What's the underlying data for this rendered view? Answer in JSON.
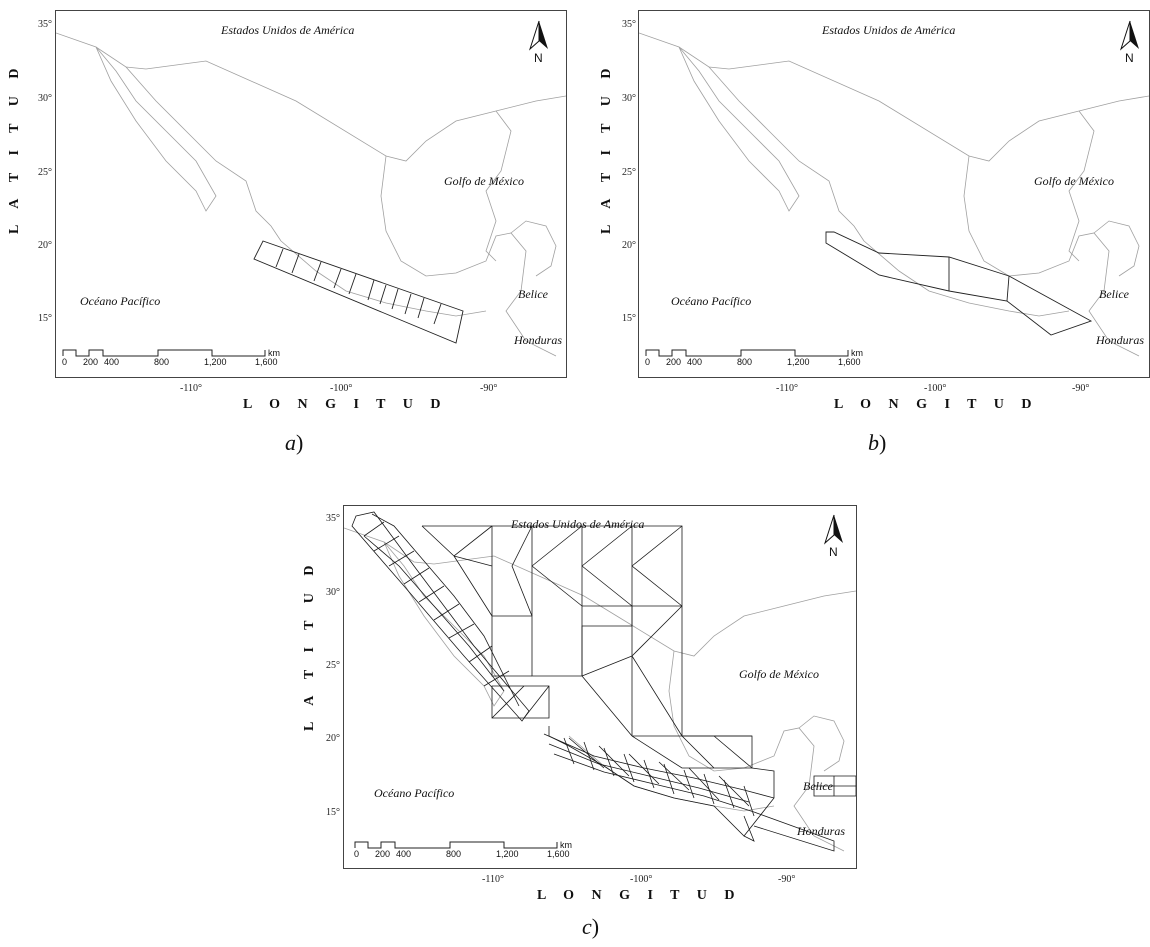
{
  "maps": [
    {
      "id": "a",
      "caption_letter": "a",
      "caption_paren": ")",
      "ylabel": "L A T I T U D",
      "xlabel": "L O N G I T U D",
      "yticks": [
        "35°",
        "30°",
        "25°",
        "20°",
        "15°"
      ],
      "xticks": [
        "-110°",
        "-100°",
        "-90°"
      ],
      "places": {
        "usa": "Estados Unidos de América",
        "gulf": "Golfo de México",
        "pacific": "Océano Pacífico",
        "belize": "Belice",
        "honduras": "Honduras"
      },
      "scale": {
        "labels": [
          "0",
          "200",
          "400",
          "800",
          "1,200",
          "1,600"
        ],
        "unit": "km"
      },
      "north": "N"
    },
    {
      "id": "b",
      "caption_letter": "b",
      "caption_paren": ")",
      "ylabel": "L A T I T U D",
      "xlabel": "L O N G I T U D",
      "yticks": [
        "35°",
        "30°",
        "25°",
        "20°",
        "15°"
      ],
      "xticks": [
        "-110°",
        "-100°",
        "-90°"
      ],
      "places": {
        "usa": "Estados Unidos de América",
        "gulf": "Golfo de México",
        "pacific": "Océano Pacífico",
        "belize": "Belice",
        "honduras": "Honduras"
      },
      "scale": {
        "labels": [
          "0",
          "200",
          "400",
          "800",
          "1,200",
          "1,600"
        ],
        "unit": "km"
      },
      "north": "N"
    },
    {
      "id": "c",
      "caption_letter": "c",
      "caption_paren": ")",
      "ylabel": "L A T I T U D",
      "xlabel": "L O N G I T U D",
      "yticks": [
        "35°",
        "30°",
        "25°",
        "20°",
        "15°"
      ],
      "xticks": [
        "-110°",
        "-100°",
        "-90°"
      ],
      "places": {
        "usa": "Estados Unidos de América",
        "gulf": "Golfo de México",
        "pacific": "Océano Pacífico",
        "belize": "Belice",
        "honduras": "Honduras"
      },
      "scale": {
        "labels": [
          "0",
          "200",
          "400",
          "800",
          "1,200",
          "1,600"
        ],
        "unit": "km"
      },
      "north": "N"
    }
  ]
}
